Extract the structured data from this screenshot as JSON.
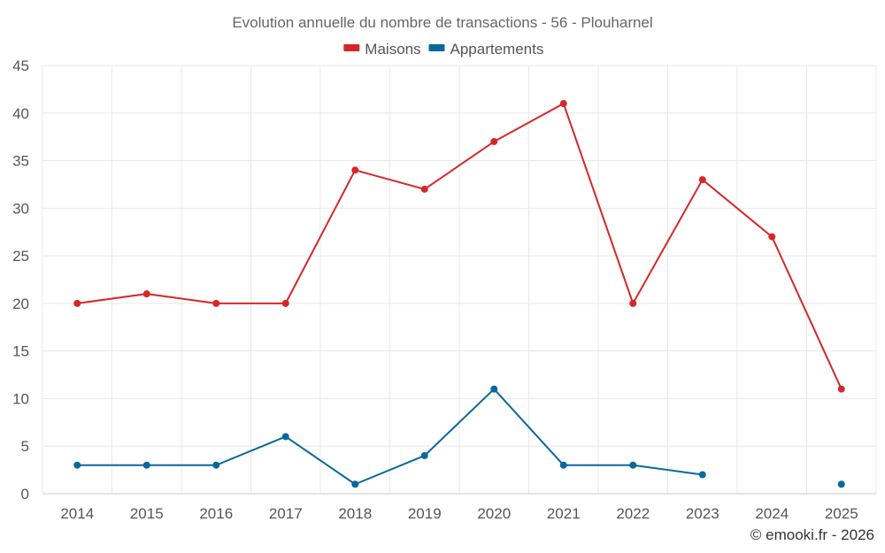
{
  "chart_data": {
    "type": "line",
    "title": "Evolution annuelle du nombre de transactions - 56 - Plouharnel",
    "categories": [
      "2014",
      "2015",
      "2016",
      "2017",
      "2018",
      "2019",
      "2020",
      "2021",
      "2022",
      "2023",
      "2024",
      "2025"
    ],
    "series": [
      {
        "name": "Maisons",
        "color": "#d62728",
        "values": [
          20,
          21,
          20,
          20,
          34,
          32,
          37,
          41,
          20,
          33,
          27,
          11
        ]
      },
      {
        "name": "Appartements",
        "color": "#08689c",
        "values": [
          3,
          3,
          3,
          6,
          1,
          4,
          11,
          3,
          3,
          2,
          null,
          1
        ]
      }
    ],
    "ylim": [
      0,
      45
    ],
    "yticks": [
      0,
      5,
      10,
      15,
      20,
      25,
      30,
      35,
      40,
      45
    ],
    "xlabel": "",
    "ylabel": "",
    "grid": true,
    "legend": "top-center"
  },
  "credit": "© emooki.fr - 2026"
}
